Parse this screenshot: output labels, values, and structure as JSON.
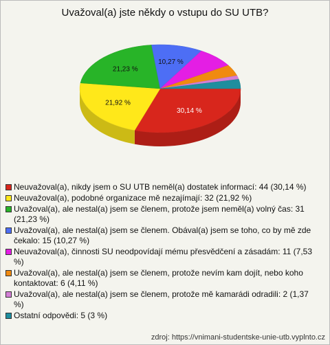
{
  "chart_data": {
    "type": "pie",
    "title": "Uvažoval(a) jste někdy o vstupu do SU UTB?",
    "categories": [
      "Neuvažoval(a), nikdy jsem o SU UTB neměl(a) dostatek informací: 44 (30,14 %)",
      "Neuvažoval(a), podobné organizace mě nezajímají: 32 (21,92 %)",
      "Uvažoval(a), ale nestal(a) jsem se členem, protože jsem neměl(a) volný čas: 31 (21,23 %)",
      "Uvažoval(a), ale nestal(a) jsem se členem. Obával(a) jsem se toho, co by mě zde čekalo: 15 (10,27 %)",
      "Neuvažoval(a), činnosti SU neodpovídají mému přesvědčení a zásadám: 11 (7,53 %)",
      "Uvažoval(a), ale nestal(a) jsem se členem, protože nevím kam dojít, nebo koho kontaktovat: 6 (4,11 %)",
      "Uvažoval(a), ale nestal(a) jsem se členem, protože mě kamarádi odradili: 2 (1,37 %)",
      "Ostatní odpovědi: 5 (3 %)"
    ],
    "values": [
      44,
      32,
      31,
      15,
      11,
      6,
      2,
      5
    ],
    "value_labels": [
      "30,14 %",
      "21,92 %",
      "21,23 %",
      "10,27 %",
      null,
      null,
      null,
      null
    ],
    "colors": [
      "#d8261c",
      "#ffe81a",
      "#28b428",
      "#4d6ef5",
      "#e41ee4",
      "#f08a10",
      "#d47fd6",
      "#1f8e9e"
    ],
    "source": "zdroj: https://vnimani-studentske-unie-utb.vyplnto.cz"
  }
}
